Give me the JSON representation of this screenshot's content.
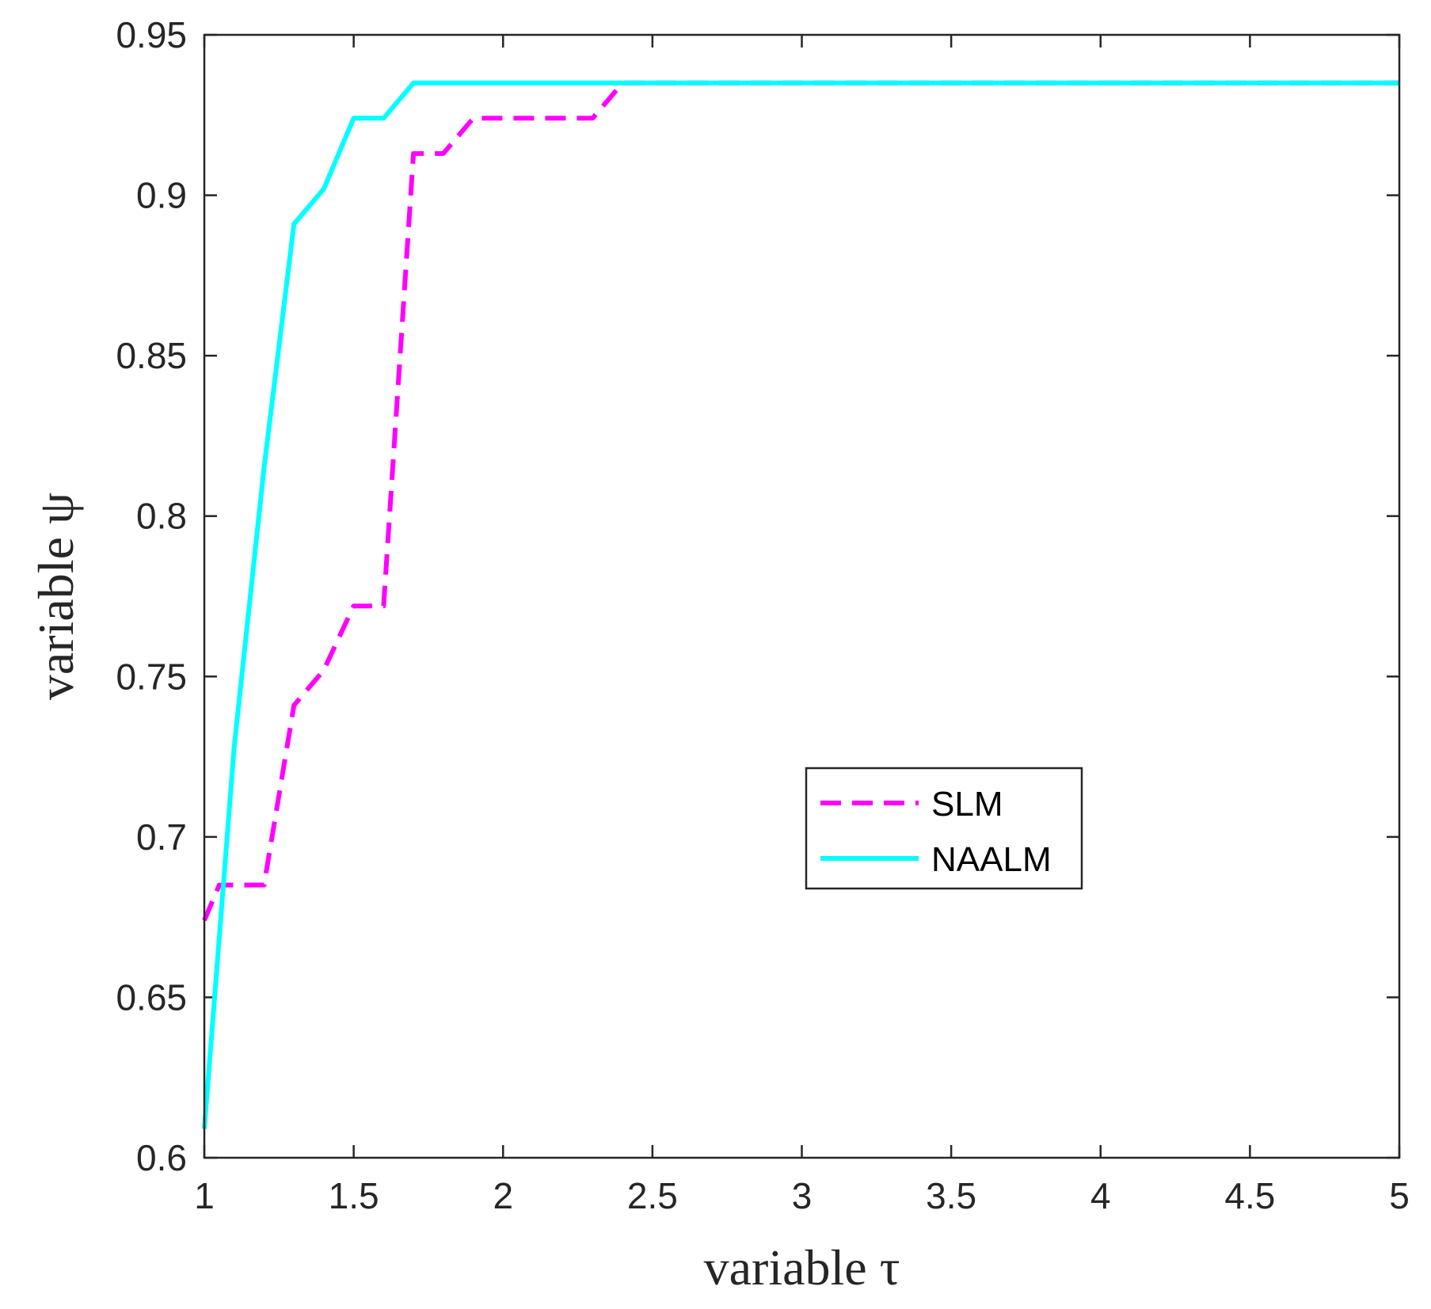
{
  "chart_data": {
    "type": "line",
    "title": "",
    "xlabel": "variable τ",
    "ylabel": "variable ψ",
    "xlim": [
      1,
      5
    ],
    "ylim": [
      0.6,
      0.95
    ],
    "xticks": [
      1,
      1.5,
      2,
      2.5,
      3,
      3.5,
      4,
      4.5,
      5
    ],
    "xtick_labels": [
      "1",
      "1.5",
      "2",
      "2.5",
      "3",
      "3.5",
      "4",
      "4.5",
      "5"
    ],
    "yticks": [
      0.6,
      0.65,
      0.7,
      0.75,
      0.8,
      0.85,
      0.9,
      0.95
    ],
    "ytick_labels": [
      "0.6",
      "0.65",
      "0.7",
      "0.75",
      "0.8",
      "0.85",
      "0.9",
      "0.95"
    ],
    "grid": false,
    "legend_position": "center-right",
    "series": [
      {
        "name": "SLM",
        "color": "#ff00ff",
        "style": "dashed",
        "x": [
          1,
          1.05,
          1.1,
          1.2,
          1.3,
          1.4,
          1.5,
          1.6,
          1.7,
          1.8,
          1.9,
          2.0,
          2.1,
          2.2,
          2.3,
          2.4,
          2.5,
          3,
          4,
          5
        ],
        "y": [
          0.674,
          0.685,
          0.685,
          0.685,
          0.741,
          0.752,
          0.772,
          0.772,
          0.913,
          0.913,
          0.924,
          0.924,
          0.924,
          0.924,
          0.924,
          0.935,
          0.935,
          0.935,
          0.935,
          0.935
        ]
      },
      {
        "name": "NAALM",
        "color": "#00ffff",
        "style": "solid",
        "x": [
          1,
          1.1,
          1.2,
          1.3,
          1.4,
          1.5,
          1.6,
          1.7,
          1.8,
          2,
          3,
          4,
          5
        ],
        "y": [
          0.609,
          0.728,
          0.815,
          0.891,
          0.902,
          0.924,
          0.924,
          0.935,
          0.935,
          0.935,
          0.935,
          0.935,
          0.935
        ]
      }
    ]
  }
}
